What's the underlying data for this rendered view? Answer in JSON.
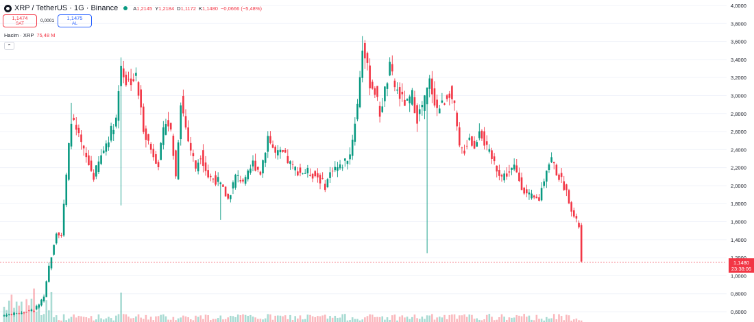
{
  "header": {
    "symbol_title": "XRP / TetherUS · 1G · Binance",
    "ohlc": [
      {
        "key": "A",
        "value": "1,2145"
      },
      {
        "key": "Y",
        "value": "1,2184"
      },
      {
        "key": "D",
        "value": "1,1172"
      },
      {
        "key": "K",
        "value": "1,1480"
      },
      {
        "key": "",
        "value": "−0,0666 (−5,48%)"
      }
    ],
    "icon": "symbol-logo-icon"
  },
  "trade": {
    "sell_price": "1,1474",
    "sell_label": "SAT",
    "spread": "0,0001",
    "buy_price": "1,1475",
    "buy_label": "AL"
  },
  "volume": {
    "label": "Hacim · XRP",
    "value": "75,48 M",
    "collapse_icon": "chevron-up-icon"
  },
  "price_tag": {
    "price": "1,1480",
    "countdown": "23:38:06"
  },
  "colors": {
    "up": "#089981",
    "down": "#f23645",
    "grid": "#f0f3fa",
    "axis_text": "#131722"
  },
  "chart_data": {
    "type": "candlestick",
    "title": "XRP / TetherUS · 1G · Binance",
    "ylim": [
      0.55,
      4.0
    ],
    "y_ticks": [
      "4,0000",
      "3,8000",
      "3,6000",
      "3,4000",
      "3,2000",
      "3,0000",
      "2,8000",
      "2,6000",
      "2,4000",
      "2,2000",
      "2,0000",
      "1,8000",
      "1,6000",
      "1,4000",
      "1,2000",
      "1,0000",
      "0,8000",
      "0,6000"
    ],
    "y_tick_values": [
      4.0,
      3.8,
      3.6,
      3.4,
      3.2,
      3.0,
      2.8,
      2.6,
      2.4,
      2.2,
      2.0,
      1.8,
      1.6,
      1.4,
      1.2,
      1.0,
      0.8,
      0.6
    ],
    "last_price": 1.148,
    "close_path": [
      [
        0,
        0.56
      ],
      [
        5,
        0.58
      ],
      [
        12,
        0.62
      ],
      [
        16,
        0.75
      ],
      [
        18,
        1.1
      ],
      [
        21,
        1.5
      ],
      [
        23,
        1.45
      ],
      [
        27,
        2.75
      ],
      [
        29,
        2.6
      ],
      [
        31,
        2.45
      ],
      [
        33,
        2.3
      ],
      [
        36,
        2.1
      ],
      [
        40,
        2.4
      ],
      [
        45,
        2.75
      ],
      [
        47,
        3.35
      ],
      [
        49,
        3.15
      ],
      [
        53,
        3.2
      ],
      [
        56,
        2.65
      ],
      [
        59,
        2.4
      ],
      [
        62,
        2.25
      ],
      [
        65,
        2.75
      ],
      [
        67,
        2.6
      ],
      [
        69,
        2.1
      ],
      [
        71,
        2.95
      ],
      [
        74,
        2.5
      ],
      [
        77,
        2.2
      ],
      [
        79,
        2.35
      ],
      [
        82,
        2.1
      ],
      [
        86,
        2.05
      ],
      [
        90,
        1.85
      ],
      [
        93,
        2.1
      ],
      [
        97,
        2.05
      ],
      [
        100,
        2.25
      ],
      [
        103,
        2.15
      ],
      [
        106,
        2.55
      ],
      [
        109,
        2.35
      ],
      [
        112,
        2.35
      ],
      [
        116,
        2.2
      ],
      [
        119,
        2.15
      ],
      [
        122,
        2.15
      ],
      [
        126,
        2.1
      ],
      [
        129,
        2.0
      ],
      [
        132,
        2.2
      ],
      [
        135,
        2.2
      ],
      [
        139,
        2.35
      ],
      [
        142,
        2.9
      ],
      [
        144,
        3.55
      ],
      [
        147,
        3.15
      ],
      [
        149,
        3.05
      ],
      [
        151,
        2.8
      ],
      [
        153,
        3.05
      ],
      [
        155,
        3.3
      ],
      [
        157,
        3.1
      ],
      [
        160,
        2.95
      ],
      [
        162,
        2.9
      ],
      [
        164,
        3.0
      ],
      [
        166,
        2.75
      ],
      [
        169,
        2.95
      ],
      [
        171,
        3.15
      ],
      [
        174,
        2.85
      ],
      [
        176,
        2.9
      ],
      [
        179,
        3.05
      ],
      [
        181,
        2.85
      ],
      [
        183,
        2.4
      ],
      [
        185,
        2.4
      ],
      [
        187,
        2.55
      ],
      [
        189,
        2.4
      ],
      [
        191,
        2.65
      ],
      [
        194,
        2.4
      ],
      [
        196,
        2.3
      ],
      [
        198,
        2.2
      ],
      [
        200,
        2.1
      ],
      [
        203,
        2.15
      ],
      [
        205,
        2.2
      ],
      [
        208,
        2.0
      ],
      [
        210,
        1.9
      ],
      [
        213,
        1.85
      ],
      [
        215,
        1.85
      ],
      [
        218,
        2.2
      ],
      [
        220,
        2.3
      ],
      [
        222,
        2.15
      ],
      [
        225,
        2.0
      ],
      [
        227,
        1.85
      ],
      [
        229,
        1.65
      ],
      [
        231,
        1.55
      ],
      [
        232,
        1.148
      ]
    ],
    "wicks": [
      {
        "i": 170,
        "low": 1.25
      },
      {
        "i": 47,
        "low": 1.78
      },
      {
        "i": 27,
        "high": 2.92
      },
      {
        "i": 87,
        "low": 1.62
      },
      {
        "i": 144,
        "high": 3.66
      }
    ]
  }
}
